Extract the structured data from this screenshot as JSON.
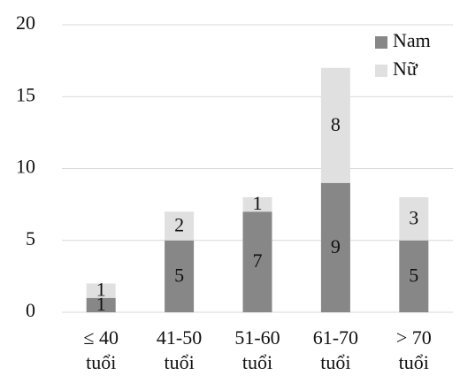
{
  "chart_data": {
    "type": "stacked-bar",
    "categories": [
      "≤ 40 tuổi",
      "41-50 tuổi",
      "51-60 tuổi",
      "61-70 tuổi",
      "> 70 tuổi"
    ],
    "series": [
      {
        "name": "Nam",
        "color": "#878787",
        "values": [
          1,
          5,
          7,
          9,
          5
        ]
      },
      {
        "name": "Nữ",
        "color": "#e0e0e0",
        "values": [
          1,
          2,
          1,
          8,
          3
        ]
      }
    ],
    "ylim": [
      0,
      20
    ],
    "yticks": [
      0,
      5,
      10,
      15,
      20
    ],
    "grid": true,
    "legend": "top-right"
  }
}
